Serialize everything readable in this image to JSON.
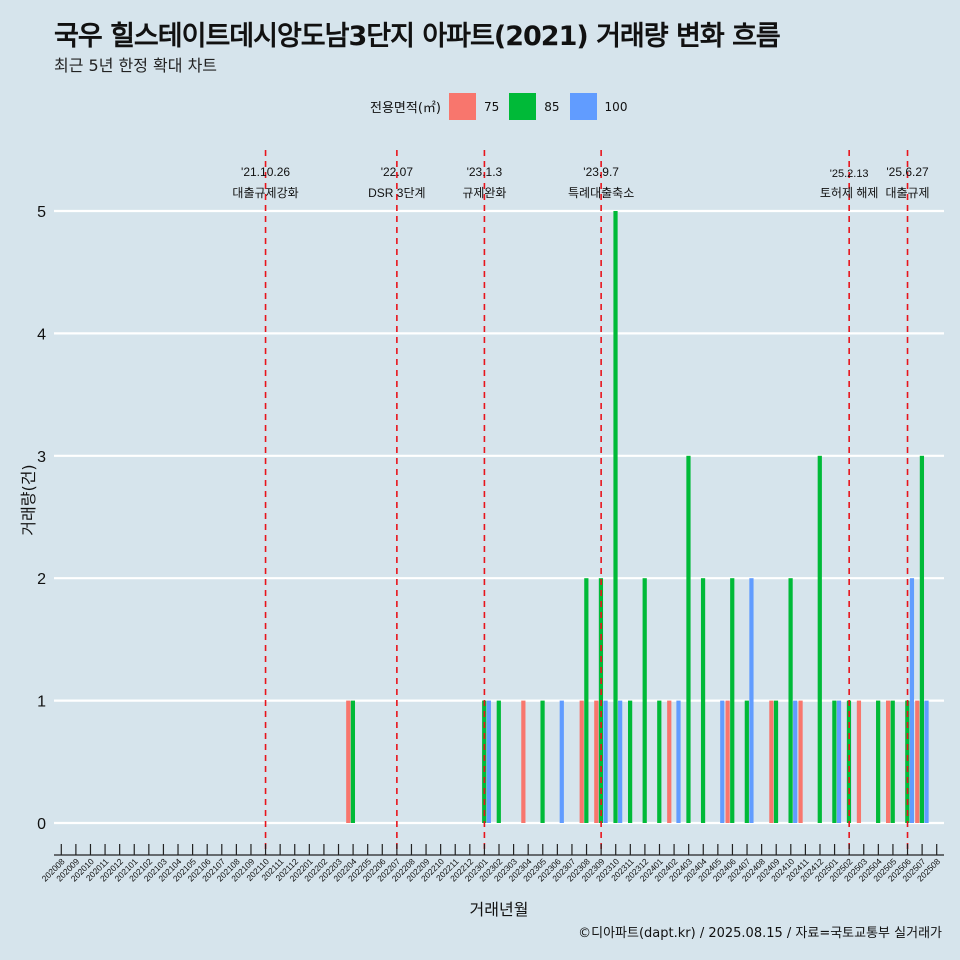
{
  "title": "국우 힐스테이트데시앙도남3단지 아파트(2021) 거래량 변화 흐름",
  "subtitle": "최근 5년 한정 확대 차트",
  "caption": "©디아파트(dapt.kr) / 2025.08.15 / 자료=국토교통부 실거래가",
  "legend": {
    "title": "전용면적(㎡)",
    "items": [
      {
        "label": "75",
        "color": "#f8766d"
      },
      {
        "label": "85",
        "color": "#00ba38"
      },
      {
        "label": "100",
        "color": "#619cff"
      }
    ]
  },
  "chart_data": {
    "type": "bar",
    "xlabel": "거래년월",
    "ylabel": "거래량(건)",
    "ylim": [
      0,
      5
    ],
    "yticks": [
      0,
      1,
      2,
      3,
      4,
      5
    ],
    "grid": true,
    "legend_position": "top",
    "categories": [
      "202008",
      "202009",
      "202010",
      "202011",
      "202012",
      "202101",
      "202102",
      "202103",
      "202104",
      "202105",
      "202106",
      "202107",
      "202108",
      "202109",
      "202110",
      "202111",
      "202112",
      "202201",
      "202202",
      "202203",
      "202204",
      "202205",
      "202206",
      "202207",
      "202208",
      "202209",
      "202210",
      "202211",
      "202212",
      "202301",
      "202302",
      "202303",
      "202304",
      "202305",
      "202306",
      "202307",
      "202308",
      "202309",
      "202310",
      "202311",
      "202312",
      "202401",
      "202402",
      "202403",
      "202404",
      "202405",
      "202406",
      "202407",
      "202408",
      "202409",
      "202410",
      "202411",
      "202412",
      "202501",
      "202502",
      "202503",
      "202504",
      "202505",
      "202506",
      "202507",
      "202508"
    ],
    "series": [
      {
        "name": "75",
        "color": "#f8766d",
        "values": [
          0,
          0,
          0,
          0,
          0,
          0,
          0,
          0,
          0,
          0,
          0,
          0,
          0,
          0,
          0,
          0,
          0,
          0,
          0,
          0,
          1,
          0,
          0,
          0,
          0,
          0,
          0,
          0,
          0,
          0,
          0,
          0,
          1,
          0,
          0,
          0,
          1,
          1,
          0,
          0,
          0,
          0,
          1,
          0,
          0,
          0,
          1,
          0,
          0,
          1,
          0,
          1,
          0,
          0,
          0,
          1,
          0,
          1,
          0,
          1,
          0
        ]
      },
      {
        "name": "85",
        "color": "#00ba38",
        "values": [
          0,
          0,
          0,
          0,
          0,
          0,
          0,
          0,
          0,
          0,
          0,
          0,
          0,
          0,
          0,
          0,
          0,
          0,
          0,
          0,
          1,
          0,
          0,
          0,
          0,
          0,
          0,
          0,
          0,
          1,
          1,
          0,
          0,
          1,
          0,
          0,
          2,
          2,
          5,
          1,
          2,
          1,
          0,
          3,
          2,
          0,
          2,
          1,
          0,
          1,
          2,
          0,
          3,
          1,
          1,
          0,
          1,
          1,
          1,
          3,
          0
        ]
      },
      {
        "name": "100",
        "color": "#619cff",
        "values": [
          0,
          0,
          0,
          0,
          0,
          0,
          0,
          0,
          0,
          0,
          0,
          0,
          0,
          0,
          0,
          0,
          0,
          0,
          0,
          0,
          0,
          0,
          0,
          0,
          0,
          0,
          0,
          0,
          0,
          1,
          0,
          0,
          0,
          0,
          1,
          0,
          0,
          1,
          1,
          0,
          0,
          0,
          1,
          0,
          0,
          1,
          0,
          2,
          0,
          0,
          1,
          0,
          0,
          1,
          0,
          0,
          0,
          0,
          2,
          1,
          0
        ]
      }
    ],
    "events": [
      {
        "month": "202110",
        "date": "'21.10.26",
        "label": "대출규제강화"
      },
      {
        "month": "202207",
        "date": "'22.07",
        "label": "DSR 3단계"
      },
      {
        "month": "202301",
        "date": "'23.1.3",
        "label": "규제완화"
      },
      {
        "month": "202309",
        "date": "'23.9.7",
        "label": "특례대출축소"
      },
      {
        "month": "202502",
        "date": "'25.2.13",
        "label": "토허제 해제"
      },
      {
        "month": "202506",
        "date": "'25.6.27",
        "label": "대출규제"
      }
    ],
    "event_line_color": "#e8141b"
  }
}
